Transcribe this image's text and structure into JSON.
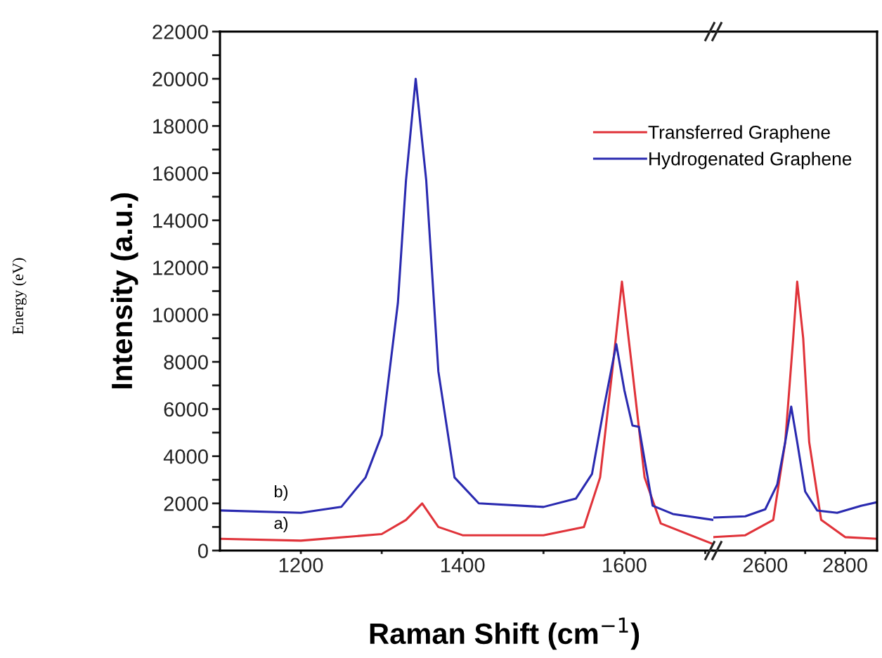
{
  "chart_data": [
    {
      "type": "line",
      "ylabel": "Intensity (a.u.)",
      "xlabel": "Raman Shift (cm$^{−1}$)",
      "legend": "top right",
      "grid": false,
      "marker": "none",
      "line_style": "solid",
      "xlim": [
        1100,
        1710
      ],
      "xticks": [
        1200,
        {
          "value": 1300,
          "label": null
        },
        1400,
        {
          "value": 1500,
          "label": null
        },
        1600,
        {
          "value": 1700,
          "label": null
        }
      ],
      "ylim": [
        0,
        22000
      ],
      "yticks": [
        0,
        {
          "value": 1000,
          "label": null
        },
        2000,
        {
          "value": 3000,
          "label": null
        },
        4000,
        {
          "value": 5000,
          "label": null
        },
        6000,
        {
          "value": 7000,
          "label": null
        },
        8000,
        {
          "value": 9000,
          "label": null
        },
        10000,
        {
          "value": 11000,
          "label": null
        },
        12000,
        {
          "value": 13000,
          "label": null
        },
        14000,
        {
          "value": 15000,
          "label": null
        },
        16000,
        {
          "value": 17000,
          "label": null
        },
        18000,
        {
          "value": 19000,
          "label": null
        },
        20000,
        {
          "value": 21000,
          "label": null
        },
        22000
      ],
      "series": [
        {
          "name": "Transferred Graphene",
          "color": "#e0333a",
          "x": [
            1100,
            1200,
            1300,
            1330,
            1350,
            1370,
            1400,
            1500,
            1550,
            1570,
            1585,
            1597,
            1610,
            1625,
            1645,
            1710
          ],
          "values": [
            500,
            420,
            700,
            1300,
            2000,
            1000,
            650,
            650,
            1000,
            3100,
            7600,
            11400,
            7600,
            3100,
            1150,
            270
          ]
        },
        {
          "name": "Hydrogenated Graphene",
          "color": "#2a2ab0",
          "x": [
            1100,
            1200,
            1250,
            1280,
            1300,
            1320,
            1330,
            1342,
            1355,
            1370,
            1390,
            1420,
            1500,
            1540,
            1560,
            1575,
            1590,
            1600,
            1610,
            1618,
            1625,
            1635,
            1660,
            1710
          ],
          "values": [
            1700,
            1600,
            1850,
            3100,
            4900,
            10500,
            15700,
            20000,
            15700,
            7600,
            3100,
            2000,
            1850,
            2200,
            3250,
            6100,
            8750,
            6800,
            5300,
            5250,
            3850,
            1900,
            1550,
            1300
          ]
        }
      ],
      "annotations": [
        "b)",
        "a)",
        "Energy (eV)"
      ]
    },
    {
      "type": "line",
      "tick_labels": "x",
      "grid": false,
      "marker": "none",
      "line_style": "solid",
      "xlim": [
        2470,
        2880
      ],
      "xticks": [
        2600,
        {
          "value": 2700,
          "label": null
        },
        2800
      ],
      "ylim": [
        0,
        22000
      ],
      "series": [
        {
          "color": "#e0333a",
          "x": [
            2470,
            2550,
            2620,
            2650,
            2670,
            2680,
            2695,
            2710,
            2740,
            2800,
            2880
          ],
          "values": [
            570,
            650,
            1300,
            4600,
            9000,
            11400,
            9000,
            4600,
            1300,
            570,
            500
          ]
        },
        {
          "color": "#2a2ab0",
          "x": [
            2470,
            2550,
            2600,
            2630,
            2650,
            2665,
            2680,
            2700,
            2730,
            2780,
            2840,
            2880
          ],
          "values": [
            1400,
            1450,
            1750,
            2800,
            4600,
            6100,
            4600,
            2500,
            1700,
            1600,
            1900,
            2050
          ]
        }
      ]
    }
  ]
}
